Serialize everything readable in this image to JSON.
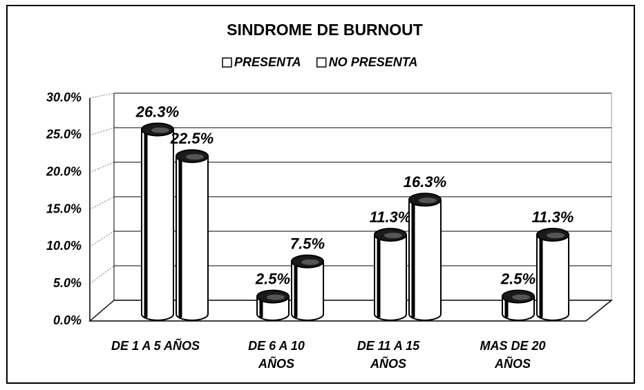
{
  "chart_data": {
    "type": "bar",
    "title": "SINDROME DE BURNOUT",
    "categories": [
      "DE 1 A 5 AÑOS",
      "DE 6 A 10 AÑOS",
      "DE 11 A 15 AÑOS",
      "MAS DE 20 AÑOS"
    ],
    "series": [
      {
        "name": "PRESENTA",
        "color": "#ffffff",
        "values": [
          26.3,
          2.5,
          11.3,
          2.5
        ],
        "value_labels": [
          "26.3%",
          "2.5%",
          "11.3%",
          "2.5%"
        ]
      },
      {
        "name": "NO PRESENTA",
        "color": "#ffffff",
        "values": [
          22.5,
          7.5,
          16.3,
          11.3
        ],
        "value_labels": [
          "22.5%",
          "7.5%",
          "16.3%",
          "11.3%"
        ]
      }
    ],
    "ylim": [
      0,
      30
    ],
    "yticks": [
      {
        "value": 0,
        "label": "0.0%"
      },
      {
        "value": 5,
        "label": "5.0%"
      },
      {
        "value": 10,
        "label": "10.0%"
      },
      {
        "value": 15,
        "label": "15.0%"
      },
      {
        "value": 20,
        "label": "20.0%"
      },
      {
        "value": 25,
        "label": "25.0%"
      },
      {
        "value": 30,
        "label": "30.0%"
      }
    ],
    "grid": true,
    "legend": "top"
  }
}
